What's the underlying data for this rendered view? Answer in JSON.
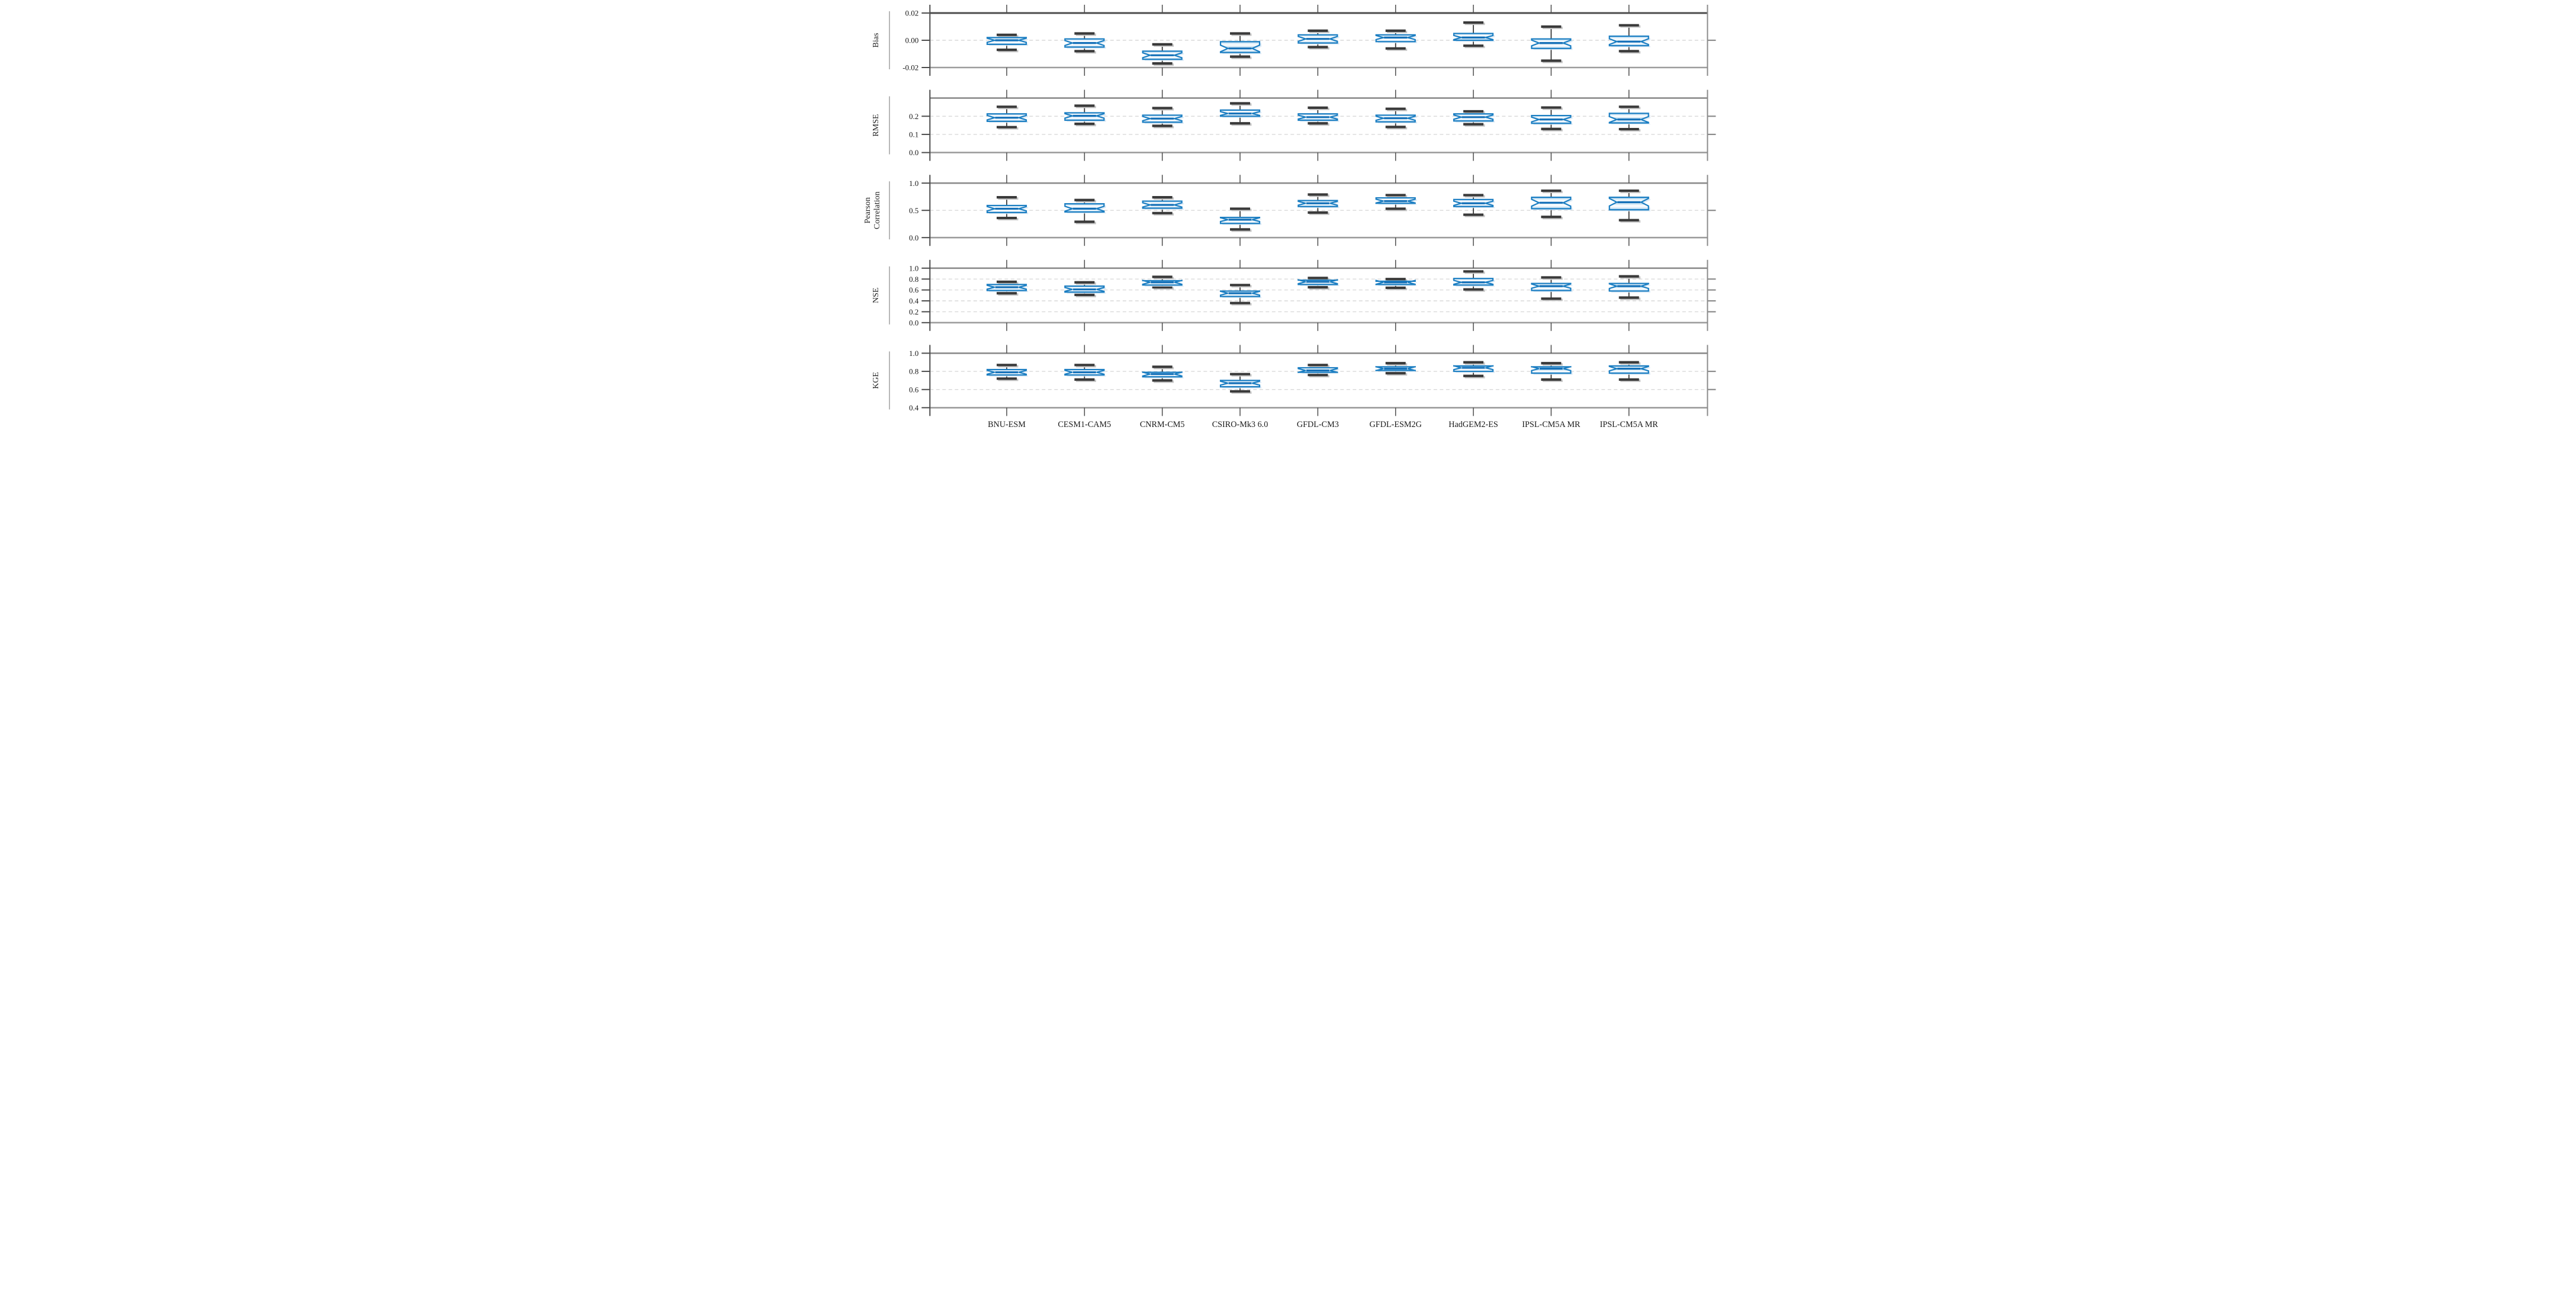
{
  "figure": {
    "background": "#ffffff",
    "description": "Five stacked notched-boxplot panels comparing hydrologic evaluation metrics across nine climate models"
  },
  "colors": {
    "box_edge": "#1b7ec2",
    "box_fill_light": "#d8eaf7",
    "box_fill_core": "#ffffff",
    "box_fill_deep": "#6fb1dd",
    "box_shadow": "#d8e8f4",
    "median": "#1470b8",
    "whisker": "#2e2e2e",
    "cap": "#3a3a3a",
    "cap_shadow": "#c7c7c7",
    "grid": "#d9d9d9",
    "grid_light": "#e3e3e3",
    "spine_dark": "#4c4c4c",
    "spine_mid": "#8b8b8b",
    "spine_soft": "#9c9c9c",
    "tick": "#4c4c4c",
    "text": "#1a1a1a",
    "label_rule": "#999999"
  },
  "chart_data": {
    "type": "boxplot",
    "orientation": "vertical",
    "notched": true,
    "grid": "dashed horizontal gridlines at labeled ticks",
    "legend_position": "none",
    "categories": [
      "BNU-ESM",
      "CESM1-CAM5",
      "CNRM-CM5",
      "CSIRO-Mk3 6.0",
      "GFDL-CM3",
      "GFDL-ESM2G",
      "HadGEM2-ES",
      "IPSL-CM5A MR",
      "IPSL-CM5A MR"
    ],
    "panels": [
      {
        "metric": "Bias",
        "ylabel_lines": [
          "Bias"
        ],
        "ymax": 0.02,
        "ymin": -0.02,
        "yticks": [
          {
            "v": 0.02,
            "label": "0.02"
          },
          {
            "v": 0.0,
            "label": "0.00"
          },
          {
            "v": -0.02,
            "label": "-0.02"
          }
        ],
        "gridlines": [
          0.0
        ],
        "boxes": [
          {
            "whislo": -0.007,
            "q1": -0.003,
            "med": 0.0,
            "q3": 0.002,
            "whishi": 0.004
          },
          {
            "whislo": -0.008,
            "q1": -0.005,
            "med": -0.002,
            "q3": 0.001,
            "whishi": 0.005
          },
          {
            "whislo": -0.017,
            "q1": -0.014,
            "med": -0.011,
            "q3": -0.008,
            "whishi": -0.003
          },
          {
            "whislo": -0.012,
            "q1": -0.009,
            "med": -0.006,
            "q3": -0.001,
            "whishi": 0.005
          },
          {
            "whislo": -0.005,
            "q1": -0.002,
            "med": 0.001,
            "q3": 0.004,
            "whishi": 0.007
          },
          {
            "whislo": -0.006,
            "q1": -0.001,
            "med": 0.002,
            "q3": 0.004,
            "whishi": 0.007
          },
          {
            "whislo": -0.004,
            "q1": 0.0,
            "med": 0.002,
            "q3": 0.005,
            "whishi": 0.013
          },
          {
            "whislo": -0.015,
            "q1": -0.006,
            "med": -0.002,
            "q3": 0.001,
            "whishi": 0.01
          },
          {
            "whislo": -0.008,
            "q1": -0.004,
            "med": -0.001,
            "q3": 0.003,
            "whishi": 0.011
          }
        ]
      },
      {
        "metric": "RMSE",
        "ylabel_lines": [
          "RMSE"
        ],
        "ymax": 0.3,
        "ymin": 0.0,
        "yticks": [
          {
            "v": 0.2,
            "label": "0.2"
          },
          {
            "v": 0.1,
            "label": "0.1"
          },
          {
            "v": 0.0,
            "label": "0.0"
          }
        ],
        "gridlines": [
          0.2,
          0.1
        ],
        "boxes": [
          {
            "whislo": 0.14,
            "q1": 0.172,
            "med": 0.192,
            "q3": 0.213,
            "whishi": 0.252
          },
          {
            "whislo": 0.158,
            "q1": 0.178,
            "med": 0.202,
            "q3": 0.219,
            "whishi": 0.258
          },
          {
            "whislo": 0.147,
            "q1": 0.167,
            "med": 0.187,
            "q3": 0.206,
            "whishi": 0.245
          },
          {
            "whislo": 0.161,
            "q1": 0.2,
            "med": 0.215,
            "q3": 0.234,
            "whishi": 0.271
          },
          {
            "whislo": 0.161,
            "q1": 0.178,
            "med": 0.195,
            "q3": 0.213,
            "whishi": 0.247
          },
          {
            "whislo": 0.141,
            "q1": 0.169,
            "med": 0.189,
            "q3": 0.206,
            "whishi": 0.241
          },
          {
            "whislo": 0.156,
            "q1": 0.174,
            "med": 0.195,
            "q3": 0.213,
            "whishi": 0.227
          },
          {
            "whislo": 0.13,
            "q1": 0.161,
            "med": 0.182,
            "q3": 0.204,
            "whishi": 0.248
          },
          {
            "whislo": 0.129,
            "q1": 0.163,
            "med": 0.182,
            "q3": 0.216,
            "whishi": 0.252
          }
        ]
      },
      {
        "metric": "Pearson Correlation",
        "ylabel_lines": [
          "Pearson",
          "Correlation"
        ],
        "ymax": 1.0,
        "ymin": 0.0,
        "yticks": [
          {
            "v": 1.0,
            "label": "1.0"
          },
          {
            "v": 0.5,
            "label": "0.5"
          },
          {
            "v": 0.0,
            "label": "0.0"
          }
        ],
        "gridlines": [
          0.5
        ],
        "boxes": [
          {
            "whislo": 0.36,
            "q1": 0.46,
            "med": 0.53,
            "q3": 0.59,
            "whishi": 0.74
          },
          {
            "whislo": 0.29,
            "q1": 0.47,
            "med": 0.53,
            "q3": 0.62,
            "whishi": 0.69
          },
          {
            "whislo": 0.45,
            "q1": 0.54,
            "med": 0.6,
            "q3": 0.67,
            "whishi": 0.74
          },
          {
            "whislo": 0.15,
            "q1": 0.26,
            "med": 0.33,
            "q3": 0.37,
            "whishi": 0.53
          },
          {
            "whislo": 0.46,
            "q1": 0.57,
            "med": 0.63,
            "q3": 0.68,
            "whishi": 0.79
          },
          {
            "whislo": 0.53,
            "q1": 0.63,
            "med": 0.67,
            "q3": 0.73,
            "whishi": 0.78
          },
          {
            "whislo": 0.42,
            "q1": 0.57,
            "med": 0.63,
            "q3": 0.7,
            "whishi": 0.78
          },
          {
            "whislo": 0.38,
            "q1": 0.53,
            "med": 0.64,
            "q3": 0.74,
            "whishi": 0.86
          },
          {
            "whislo": 0.32,
            "q1": 0.51,
            "med": 0.65,
            "q3": 0.74,
            "whishi": 0.86
          }
        ]
      },
      {
        "metric": "NSE",
        "ylabel_lines": [
          "NSE"
        ],
        "ymax": 1.0,
        "ymin": 0.0,
        "yticks": [
          {
            "v": 1.0,
            "label": "1.0"
          },
          {
            "v": 0.8,
            "label": "0.8"
          },
          {
            "v": 0.6,
            "label": "0.6"
          },
          {
            "v": 0.4,
            "label": "0.4"
          },
          {
            "v": 0.2,
            "label": "0.2"
          },
          {
            "v": 0.0,
            "label": "0.0"
          }
        ],
        "gridlines": [
          0.8,
          0.6,
          0.4,
          0.2
        ],
        "boxes": [
          {
            "whislo": 0.54,
            "q1": 0.59,
            "med": 0.65,
            "q3": 0.7,
            "whishi": 0.75
          },
          {
            "whislo": 0.51,
            "q1": 0.56,
            "med": 0.61,
            "q3": 0.67,
            "whishi": 0.74
          },
          {
            "whislo": 0.65,
            "q1": 0.69,
            "med": 0.74,
            "q3": 0.77,
            "whishi": 0.84
          },
          {
            "whislo": 0.36,
            "q1": 0.48,
            "med": 0.54,
            "q3": 0.58,
            "whishi": 0.69
          },
          {
            "whislo": 0.65,
            "q1": 0.7,
            "med": 0.75,
            "q3": 0.78,
            "whishi": 0.82
          },
          {
            "whislo": 0.64,
            "q1": 0.7,
            "med": 0.74,
            "q3": 0.76,
            "whishi": 0.8
          },
          {
            "whislo": 0.61,
            "q1": 0.69,
            "med": 0.74,
            "q3": 0.81,
            "whishi": 0.94
          },
          {
            "whislo": 0.44,
            "q1": 0.59,
            "med": 0.67,
            "q3": 0.72,
            "whishi": 0.83
          },
          {
            "whislo": 0.46,
            "q1": 0.58,
            "med": 0.67,
            "q3": 0.72,
            "whishi": 0.85
          }
        ]
      },
      {
        "metric": "KGE",
        "ylabel_lines": [
          "KGE"
        ],
        "ymax": 1.0,
        "ymin": 0.4,
        "yticks": [
          {
            "v": 1.0,
            "label": "1.0"
          },
          {
            "v": 0.8,
            "label": "0.8"
          },
          {
            "v": 0.6,
            "label": "0.6"
          },
          {
            "v": 0.4,
            "label": "0.4"
          }
        ],
        "gridlines": [
          0.8,
          0.6
        ],
        "boxes": [
          {
            "whislo": 0.72,
            "q1": 0.76,
            "med": 0.79,
            "q3": 0.82,
            "whishi": 0.87
          },
          {
            "whislo": 0.71,
            "q1": 0.76,
            "med": 0.79,
            "q3": 0.82,
            "whishi": 0.87
          },
          {
            "whislo": 0.7,
            "q1": 0.74,
            "med": 0.77,
            "q3": 0.79,
            "whishi": 0.85
          },
          {
            "whislo": 0.58,
            "q1": 0.63,
            "med": 0.67,
            "q3": 0.7,
            "whishi": 0.77
          },
          {
            "whislo": 0.76,
            "q1": 0.79,
            "med": 0.81,
            "q3": 0.84,
            "whishi": 0.87
          },
          {
            "whislo": 0.78,
            "q1": 0.81,
            "med": 0.83,
            "q3": 0.85,
            "whishi": 0.89
          },
          {
            "whislo": 0.75,
            "q1": 0.8,
            "med": 0.84,
            "q3": 0.86,
            "whishi": 0.9
          },
          {
            "whislo": 0.71,
            "q1": 0.78,
            "med": 0.83,
            "q3": 0.85,
            "whishi": 0.89
          },
          {
            "whislo": 0.71,
            "q1": 0.78,
            "med": 0.83,
            "q3": 0.86,
            "whishi": 0.9
          }
        ]
      }
    ]
  }
}
